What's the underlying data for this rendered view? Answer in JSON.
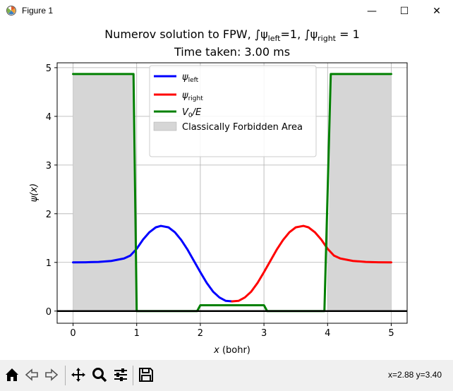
{
  "window": {
    "title": "Figure 1",
    "buttons": {
      "minimize": "—",
      "maximize": "☐",
      "close": "✕"
    }
  },
  "toolbar": {
    "icons": [
      "home-icon",
      "back-arrow-icon",
      "forward-arrow-icon",
      "pan-icon",
      "zoom-icon",
      "configure-subplots-icon",
      "save-icon"
    ],
    "coordinates": "x=2.88 y=3.40"
  },
  "chart_data": {
    "type": "line",
    "title_line1_parts": {
      "prefix": "Numerov solution to FPW, ",
      "int1": "∫ψ",
      "sub1": "left",
      "eq1": "=1, ",
      "int2": "∫ψ",
      "sub2": "right",
      "eq2": " = 1"
    },
    "title_line2": "Time taken: 3.00 ms",
    "xlabel_var": "x",
    "xlabel_unit": " (bohr)",
    "ylabel": "ψ(x)",
    "xlim": [
      -0.25,
      5.25
    ],
    "ylim": [
      -0.25,
      5.1
    ],
    "xticks": [
      "0",
      "1",
      "2",
      "3",
      "4",
      "5"
    ],
    "yticks": [
      "0",
      "1",
      "2",
      "3",
      "4",
      "5"
    ],
    "grid": true,
    "legend_placement": "upper center",
    "legend": [
      {
        "label_main": "ψ",
        "label_sub": "left",
        "color": "#0000ff",
        "kind": "line"
      },
      {
        "label_main": "ψ",
        "label_sub": "right",
        "color": "#ff0000",
        "kind": "line"
      },
      {
        "label_main": "V",
        "label_sub": "0",
        "label_tail": "/E",
        "color": "#008000",
        "kind": "line"
      },
      {
        "label_main": "Classically Forbidden Area",
        "color": "#d6d6d6",
        "kind": "patch"
      }
    ],
    "series": [
      {
        "name": "psi_left",
        "color": "#0000ff",
        "x": [
          0,
          0.2,
          0.4,
          0.6,
          0.8,
          0.9,
          1.0,
          1.1,
          1.2,
          1.3,
          1.38,
          1.5,
          1.6,
          1.7,
          1.8,
          1.9,
          2.0,
          2.1,
          2.2,
          2.3,
          2.4,
          2.5
        ],
        "y": [
          1.0,
          1.003,
          1.01,
          1.03,
          1.08,
          1.14,
          1.28,
          1.47,
          1.62,
          1.72,
          1.75,
          1.72,
          1.62,
          1.46,
          1.26,
          1.03,
          0.8,
          0.58,
          0.4,
          0.28,
          0.21,
          0.2
        ]
      },
      {
        "name": "psi_right",
        "color": "#ff0000",
        "x": [
          2.5,
          2.6,
          2.7,
          2.8,
          2.9,
          3.0,
          3.1,
          3.2,
          3.3,
          3.4,
          3.5,
          3.62,
          3.7,
          3.8,
          3.9,
          4.0,
          4.1,
          4.2,
          4.4,
          4.6,
          4.8,
          5.0
        ],
        "y": [
          0.2,
          0.21,
          0.28,
          0.4,
          0.58,
          0.8,
          1.03,
          1.26,
          1.46,
          1.62,
          1.72,
          1.75,
          1.72,
          1.62,
          1.47,
          1.28,
          1.14,
          1.08,
          1.03,
          1.01,
          1.003,
          1.0
        ]
      },
      {
        "name": "V0_over_E",
        "color": "#008000",
        "x": [
          0,
          0.95,
          1.0,
          1.95,
          2.0,
          3.0,
          3.05,
          3.95,
          4.05,
          5.0
        ],
        "y": [
          4.87,
          4.87,
          0,
          0,
          0.12,
          0.12,
          0,
          0,
          4.87,
          4.87
        ]
      }
    ],
    "forbidden_regions": [
      {
        "x": [
          0,
          0.95,
          1.0
        ],
        "y_top": [
          4.87,
          4.87,
          0
        ]
      },
      {
        "x": [
          4.0,
          4.05,
          5.0
        ],
        "y_top": [
          0,
          4.87,
          4.87
        ]
      }
    ],
    "baseline_y": 0
  }
}
